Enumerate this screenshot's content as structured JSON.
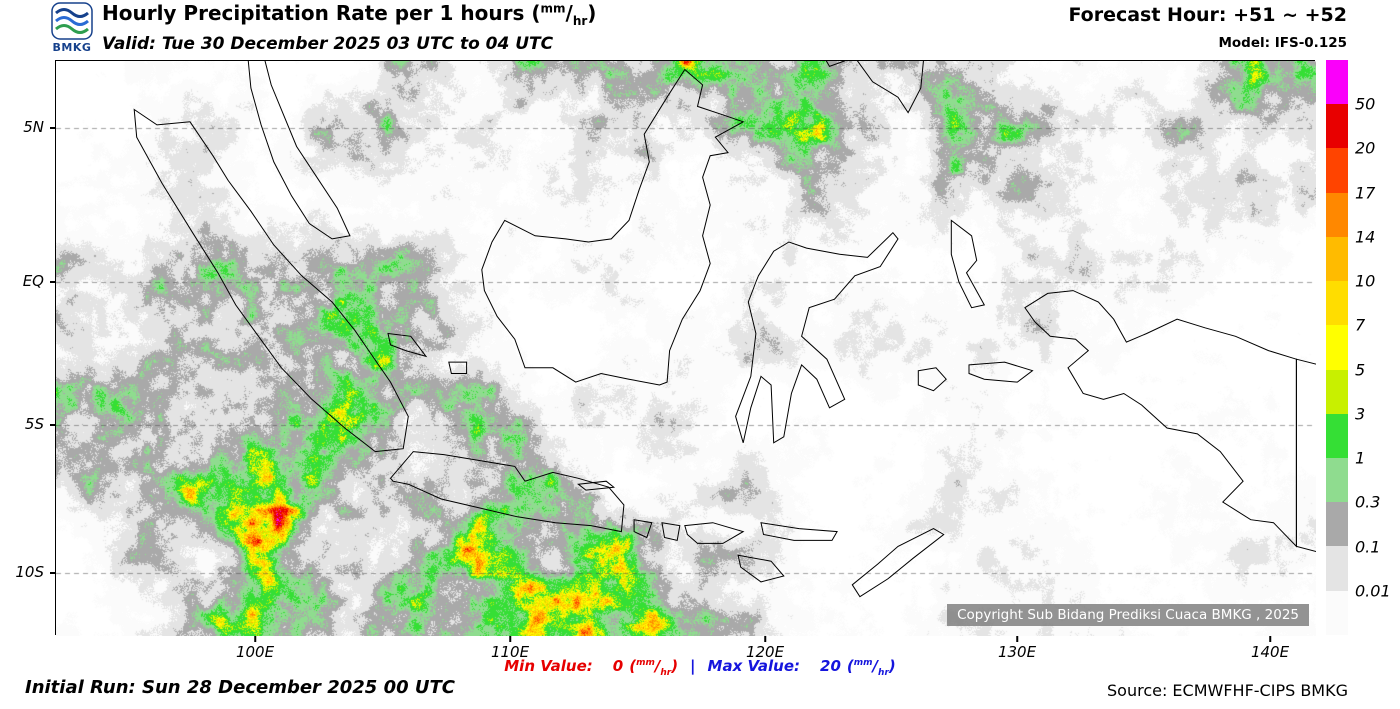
{
  "header": {
    "logo": "BMKG",
    "title_prefix": "Hourly Precipitation Rate per 1 hours ",
    "unit_open": "(",
    "unit_numerator": "mm",
    "unit_slash": "/",
    "unit_denominator": "hr",
    "unit_close": ")",
    "valid_line": "Valid: Tue 30 December 2025 03 UTC to 04 UTC",
    "forecast_hour": "Forecast Hour: +51 ~ +52",
    "model": "Model: IFS-0.125"
  },
  "map": {
    "lat_labels": [
      "5N",
      "EQ",
      "5S",
      "10S"
    ],
    "lon_labels": [
      "100E",
      "110E",
      "120E",
      "130E",
      "140E"
    ],
    "copyright": "Copyright Sub Bidang Prediksi Cuaca BMKG , 2025"
  },
  "legend": {
    "tick_labels": [
      "50",
      "20",
      "17",
      "14",
      "10",
      "7",
      "5",
      "3",
      "1",
      "0.3",
      "0.1",
      "0.01"
    ],
    "band_colors": [
      "#fa00fa",
      "#e80000",
      "#ff4400",
      "#ff8800",
      "#ffbb00",
      "#ffdd00",
      "#ffff00",
      "#c8f000",
      "#35df35",
      "#8fdc8f",
      "#a9a9a9",
      "#e4e4e4",
      "#fbfbfb"
    ]
  },
  "footer": {
    "min_label": "Min Value:",
    "min_value": "0",
    "separator": "|",
    "max_label": "Max Value:",
    "max_value": "20",
    "initial_run": "Initial Run: Sun 28 December 2025 00 UTC",
    "source": "Source: ECMWFHF-CIPS BMKG"
  }
}
